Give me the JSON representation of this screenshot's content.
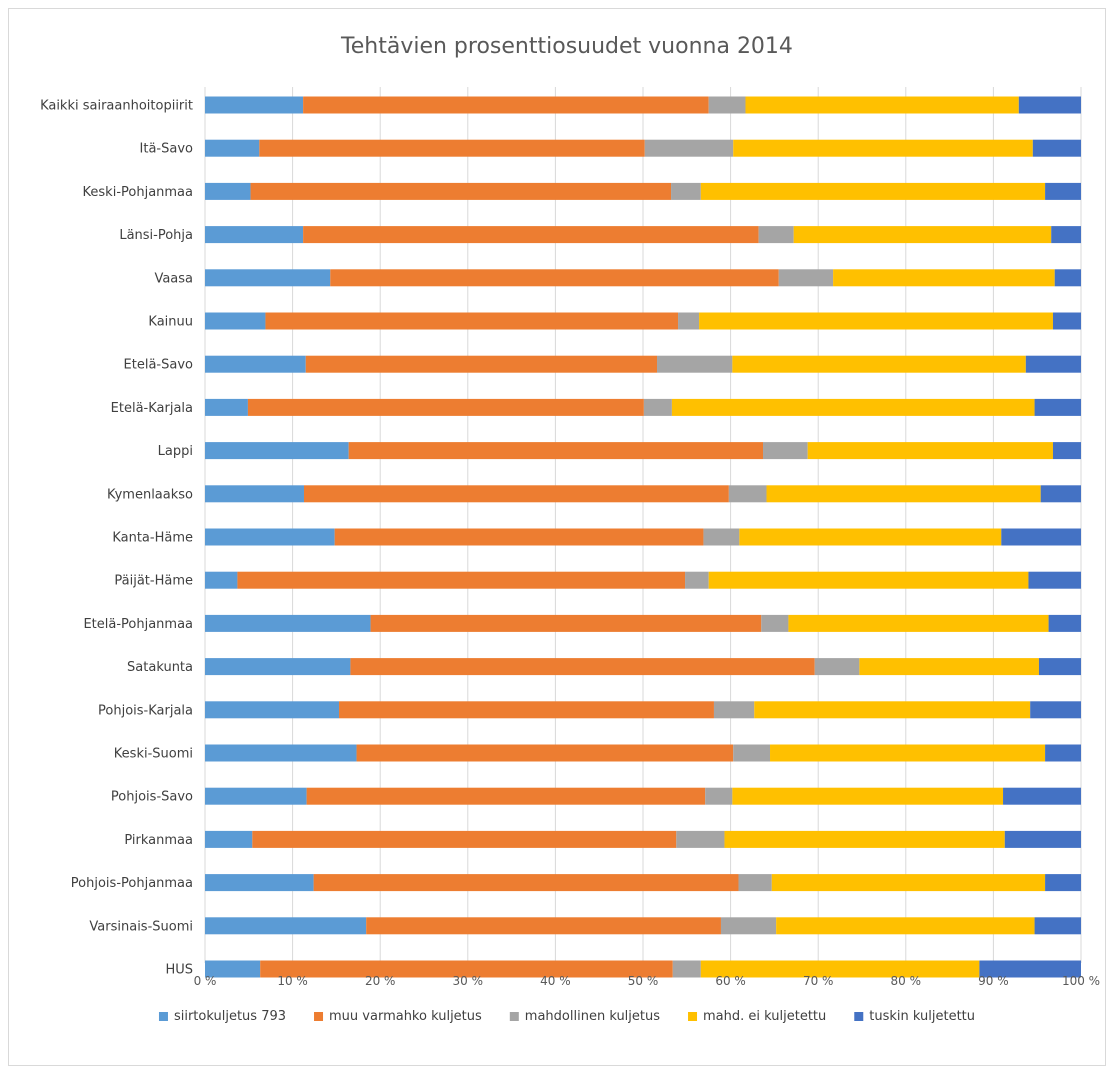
{
  "chart_data": {
    "type": "bar",
    "orientation": "horizontal",
    "stacked": "percent",
    "title": "Tehtävien prosenttiosuudet vuonna 2014",
    "categories": [
      "Kaikki sairaanhoitopiirit",
      "Itä-Savo",
      "Keski-Pohjanmaa",
      "Länsi-Pohja",
      "Vaasa",
      "Kainuu",
      "Etelä-Savo",
      "Etelä-Karjala",
      "Lappi",
      "Kymenlaakso",
      "Kanta-Häme",
      "Päijät-Häme",
      "Etelä-Pohjanmaa",
      "Satakunta",
      "Pohjois-Karjala",
      "Keski-Suomi",
      "Pohjois-Savo",
      "Pirkanmaa",
      "Pohjois-Pohjanmaa",
      "Varsinais-Suomi",
      "HUS"
    ],
    "series": [
      {
        "name": "siirtokuljetus 793",
        "color": "#5b9bd5",
        "values": [
          11.2,
          6.2,
          5.2,
          11.2,
          14.3,
          6.9,
          11.5,
          4.9,
          16.4,
          11.3,
          14.8,
          3.7,
          18.9,
          16.6,
          15.3,
          17.3,
          11.6,
          5.4,
          12.4,
          18.4,
          6.3
        ]
      },
      {
        "name": "muu varmahko kuljetus",
        "color": "#ed7d31",
        "values": [
          46.3,
          44.0,
          48.0,
          52.0,
          51.2,
          47.1,
          40.1,
          45.2,
          47.3,
          48.5,
          42.1,
          51.1,
          44.6,
          53.0,
          42.8,
          43.0,
          45.5,
          48.4,
          48.5,
          40.5,
          47.1
        ]
      },
      {
        "name": "mahdollinen kuljetus",
        "color": "#a5a5a5",
        "values": [
          4.2,
          10.1,
          3.4,
          4.0,
          6.2,
          2.4,
          8.6,
          3.2,
          5.1,
          4.3,
          4.1,
          2.7,
          3.1,
          5.1,
          4.6,
          4.2,
          3.1,
          5.5,
          3.8,
          6.3,
          3.2
        ]
      },
      {
        "name": "mahd. ei kuljetettu",
        "color": "#ffc000",
        "values": [
          31.2,
          34.2,
          39.3,
          29.4,
          25.3,
          40.4,
          33.5,
          41.4,
          28.0,
          31.3,
          29.9,
          36.5,
          29.7,
          20.5,
          31.5,
          31.4,
          30.9,
          32.0,
          31.2,
          29.5,
          31.8
        ]
      },
      {
        "name": "tuskin kuljetettu",
        "color": "#4472c4",
        "values": [
          7.1,
          5.5,
          4.1,
          3.4,
          3.0,
          3.2,
          6.3,
          5.3,
          3.2,
          4.6,
          9.1,
          6.0,
          3.7,
          4.8,
          5.8,
          4.1,
          8.9,
          8.7,
          4.1,
          5.3,
          11.6
        ]
      }
    ],
    "xlim": [
      0,
      100
    ],
    "x_ticks": [
      "0 %",
      "10 %",
      "20 %",
      "30 %",
      "40 %",
      "50 %",
      "60 %",
      "70 %",
      "80 %",
      "90 %",
      "100 %"
    ],
    "grid": true,
    "legend_position": "bottom"
  }
}
